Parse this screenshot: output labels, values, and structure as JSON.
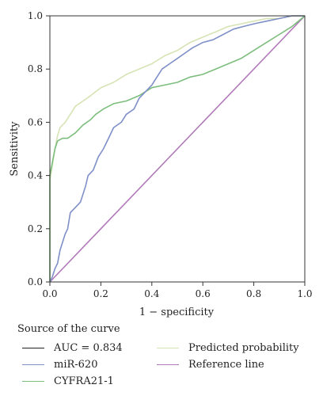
{
  "chart_data": {
    "type": "line",
    "xlabel": "1 − specificity",
    "ylabel": "Sensitivity",
    "xlim": [
      0,
      1
    ],
    "ylim": [
      0,
      1
    ],
    "x_ticks": [
      "0.0",
      "0.2",
      "0.4",
      "0.6",
      "0.8",
      "1.0"
    ],
    "y_ticks": [
      "0.0",
      "0.2",
      "0.4",
      "0.6",
      "0.8",
      "1.0"
    ],
    "grid": false,
    "legend_title": "Source of the curve",
    "legend_placement": "bottom",
    "series": [
      {
        "name": "AUC = 0.834",
        "color": "#222222",
        "points": []
      },
      {
        "name": "Predicted probability",
        "color": "#d6e3b4",
        "points": [
          [
            0,
            0
          ],
          [
            0,
            0.38
          ],
          [
            0.01,
            0.44
          ],
          [
            0.02,
            0.5
          ],
          [
            0.03,
            0.55
          ],
          [
            0.04,
            0.58
          ],
          [
            0.06,
            0.6
          ],
          [
            0.08,
            0.63
          ],
          [
            0.1,
            0.66
          ],
          [
            0.13,
            0.68
          ],
          [
            0.16,
            0.7
          ],
          [
            0.2,
            0.73
          ],
          [
            0.25,
            0.75
          ],
          [
            0.3,
            0.78
          ],
          [
            0.35,
            0.8
          ],
          [
            0.4,
            0.82
          ],
          [
            0.45,
            0.85
          ],
          [
            0.5,
            0.87
          ],
          [
            0.55,
            0.9
          ],
          [
            0.6,
            0.92
          ],
          [
            0.65,
            0.94
          ],
          [
            0.7,
            0.96
          ],
          [
            0.75,
            0.97
          ],
          [
            0.8,
            0.98
          ],
          [
            0.85,
            0.99
          ],
          [
            0.9,
            0.99
          ],
          [
            0.95,
            1.0
          ],
          [
            1,
            1
          ]
        ]
      },
      {
        "name": "miR-620",
        "color": "#7f8fc8",
        "points": [
          [
            0,
            0
          ],
          [
            0.01,
            0.02
          ],
          [
            0.02,
            0.05
          ],
          [
            0.03,
            0.07
          ],
          [
            0.04,
            0.12
          ],
          [
            0.06,
            0.18
          ],
          [
            0.07,
            0.2
          ],
          [
            0.08,
            0.26
          ],
          [
            0.1,
            0.28
          ],
          [
            0.12,
            0.3
          ],
          [
            0.14,
            0.36
          ],
          [
            0.15,
            0.4
          ],
          [
            0.17,
            0.42
          ],
          [
            0.19,
            0.47
          ],
          [
            0.21,
            0.5
          ],
          [
            0.23,
            0.54
          ],
          [
            0.25,
            0.58
          ],
          [
            0.28,
            0.6
          ],
          [
            0.3,
            0.63
          ],
          [
            0.33,
            0.65
          ],
          [
            0.35,
            0.69
          ],
          [
            0.38,
            0.72
          ],
          [
            0.4,
            0.74
          ],
          [
            0.42,
            0.77
          ],
          [
            0.44,
            0.8
          ],
          [
            0.47,
            0.82
          ],
          [
            0.5,
            0.84
          ],
          [
            0.53,
            0.86
          ],
          [
            0.56,
            0.88
          ],
          [
            0.6,
            0.9
          ],
          [
            0.64,
            0.91
          ],
          [
            0.68,
            0.93
          ],
          [
            0.72,
            0.95
          ],
          [
            0.76,
            0.96
          ],
          [
            0.8,
            0.97
          ],
          [
            0.85,
            0.98
          ],
          [
            0.9,
            0.99
          ],
          [
            0.95,
            1.0
          ],
          [
            1,
            1
          ]
        ]
      },
      {
        "name": "CYFRA21-1",
        "color": "#7dbd7d",
        "points": [
          [
            0,
            0
          ],
          [
            0,
            0.4
          ],
          [
            0.01,
            0.45
          ],
          [
            0.02,
            0.5
          ],
          [
            0.03,
            0.53
          ],
          [
            0.05,
            0.54
          ],
          [
            0.07,
            0.54
          ],
          [
            0.1,
            0.56
          ],
          [
            0.13,
            0.59
          ],
          [
            0.16,
            0.61
          ],
          [
            0.18,
            0.63
          ],
          [
            0.21,
            0.65
          ],
          [
            0.25,
            0.67
          ],
          [
            0.3,
            0.68
          ],
          [
            0.35,
            0.7
          ],
          [
            0.4,
            0.73
          ],
          [
            0.45,
            0.74
          ],
          [
            0.5,
            0.75
          ],
          [
            0.55,
            0.77
          ],
          [
            0.6,
            0.78
          ],
          [
            0.65,
            0.8
          ],
          [
            0.7,
            0.82
          ],
          [
            0.75,
            0.84
          ],
          [
            0.8,
            0.87
          ],
          [
            0.85,
            0.9
          ],
          [
            0.9,
            0.93
          ],
          [
            0.95,
            0.96
          ],
          [
            1,
            1
          ]
        ]
      },
      {
        "name": "Reference line",
        "color": "#b07ab8",
        "points": [
          [
            0,
            0
          ],
          [
            1,
            1
          ]
        ]
      }
    ]
  },
  "legend_layout": [
    [
      0,
      1
    ],
    [
      2,
      4
    ],
    [
      3
    ]
  ]
}
